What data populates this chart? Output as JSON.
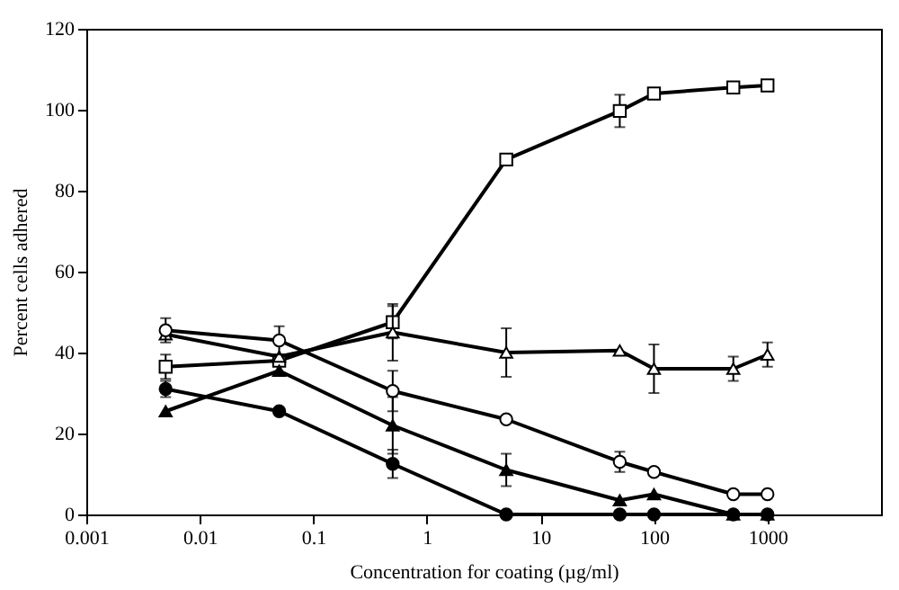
{
  "chart_data": {
    "type": "line",
    "xlabel": "Concentration for coating      (µg/ml)",
    "ylabel": "Percent cells adhered",
    "x": [
      0.005,
      0.05,
      0.5,
      5,
      50,
      100,
      500,
      1000
    ],
    "series": [
      {
        "color": "#000000",
        "marker": "square",
        "values": [
          36.5,
          38,
          47.5,
          87.7,
          99.7,
          104,
          105.5,
          106
        ],
        "errors": [
          3,
          null,
          4,
          null,
          4,
          null,
          null,
          null
        ]
      },
      {
        "color": "#000000",
        "marker": "triangle",
        "values": [
          44.5,
          39,
          45,
          40,
          40.5,
          36,
          36,
          39.5
        ],
        "errors": [
          null,
          null,
          7,
          6,
          null,
          6,
          3,
          3
        ]
      },
      {
        "color": "#000000",
        "marker": "circle",
        "values": [
          45.5,
          43,
          30.5,
          23.5,
          13,
          10.5,
          5,
          5
        ],
        "errors": [
          3,
          3.5,
          5,
          null,
          2.5,
          null,
          null,
          null
        ]
      },
      {
        "color": "#000000",
        "marker": "triangle",
        "values": [
          25.5,
          35.5,
          22,
          11,
          3.5,
          5,
          0,
          0
        ],
        "errors": [
          null,
          null,
          7,
          4,
          null,
          null,
          null,
          null
        ]
      },
      {
        "color": "#000000",
        "marker": "circle",
        "values": [
          31,
          25.5,
          12.5,
          0,
          0,
          0,
          0,
          0
        ],
        "errors": [
          2,
          null,
          3.5,
          null,
          null,
          null,
          null,
          null
        ]
      }
    ],
    "log": "x",
    "xlim": [
      0.001,
      10000
    ],
    "xticks": [
      0.001,
      0.01,
      0.1,
      1,
      10,
      100,
      1000
    ],
    "ylim": [
      0,
      120
    ],
    "yticks": [
      0,
      20,
      40,
      60,
      80,
      100,
      120
    ],
    "grid": false,
    "line_style": "solid"
  }
}
